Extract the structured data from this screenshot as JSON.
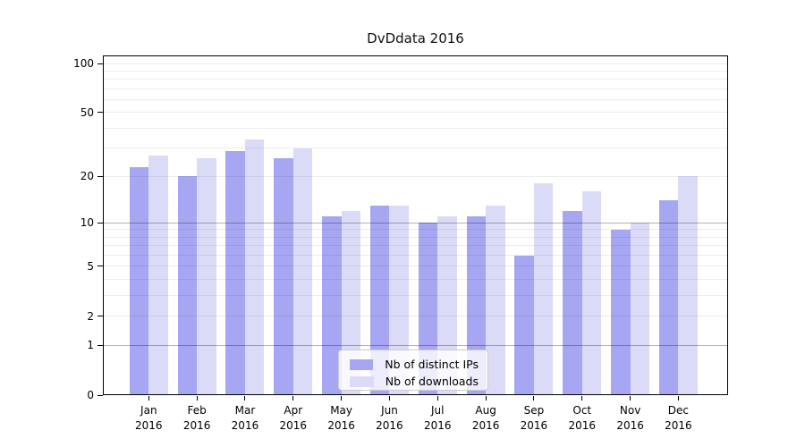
{
  "title": "DvDdata 2016",
  "colors": {
    "bar_distinct_ips": "#a6a6f2",
    "bar_downloads": "#dbdbf8",
    "axis": "#000000",
    "grid_minor": "rgba(0,0,0,0.07)",
    "grid_major": "rgba(0,0,0,0.30)",
    "legend_border": "#cccccc"
  },
  "chart_data": {
    "type": "bar",
    "title": "DvDdata 2016",
    "categories": [
      "Jan 2016",
      "Feb 2016",
      "Mar 2016",
      "Apr 2016",
      "May 2016",
      "Jun 2016",
      "Jul 2016",
      "Aug 2016",
      "Sep 2016",
      "Oct 2016",
      "Nov 2016",
      "Dec 2016"
    ],
    "series": [
      {
        "name": "Nb of distinct IPs",
        "color": "#a6a6f2",
        "values": [
          23,
          20,
          29,
          26,
          11,
          13,
          10,
          11,
          6,
          12,
          9,
          14
        ]
      },
      {
        "name": "Nb of downloads",
        "color": "#dbdbf8",
        "values": [
          27,
          26,
          34,
          30,
          12,
          13,
          11,
          13,
          18,
          16,
          10,
          20
        ]
      }
    ],
    "yscale": "log1p",
    "y_ticks": [
      100,
      50,
      20,
      10,
      5,
      2,
      1,
      0
    ],
    "ylim": [
      0,
      112
    ],
    "xlabel": "",
    "ylabel": "",
    "grid": "both",
    "legend_position": "lower center"
  }
}
